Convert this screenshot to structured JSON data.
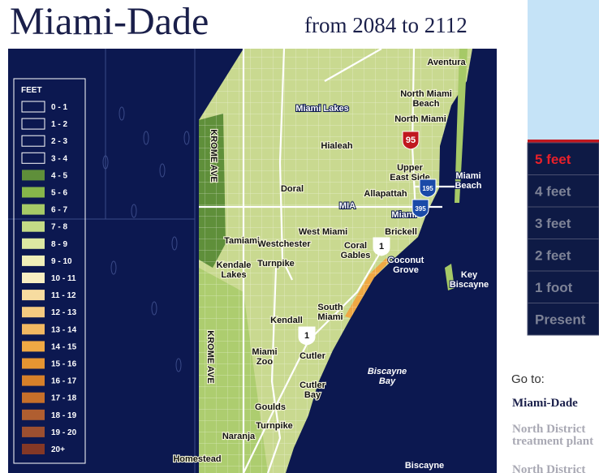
{
  "header": {
    "title": "Miami-Dade",
    "subtitle": "from 2084 to 2112"
  },
  "legend": {
    "title": "FEET",
    "items": [
      {
        "label": "0 - 1",
        "color": "#0c1850"
      },
      {
        "label": "1 - 2",
        "color": "#0c1850"
      },
      {
        "label": "2 - 3",
        "color": "#0c1850"
      },
      {
        "label": "3 - 4",
        "color": "#0c1850"
      },
      {
        "label": "4 - 5",
        "color": "#5f8f3a"
      },
      {
        "label": "5 - 6",
        "color": "#86b54a"
      },
      {
        "label": "6 - 7",
        "color": "#a6c967"
      },
      {
        "label": "7 - 8",
        "color": "#c4db86"
      },
      {
        "label": "8 - 9",
        "color": "#dce8a2"
      },
      {
        "label": "9 - 10",
        "color": "#f0efb8"
      },
      {
        "label": "10 - 11",
        "color": "#f8eec2"
      },
      {
        "label": "11 - 12",
        "color": "#f7dca0"
      },
      {
        "label": "12 - 13",
        "color": "#f4ca80"
      },
      {
        "label": "13 - 14",
        "color": "#f1b862"
      },
      {
        "label": "14 - 15",
        "color": "#efa844"
      },
      {
        "label": "15 - 16",
        "color": "#e59532"
      },
      {
        "label": "16 - 17",
        "color": "#d6802a"
      },
      {
        "label": "17 - 18",
        "color": "#c66f2a"
      },
      {
        "label": "18 - 19",
        "color": "#b05e30"
      },
      {
        "label": "19 - 20",
        "color": "#9c4f30"
      },
      {
        "label": "20+",
        "color": "#843826"
      }
    ]
  },
  "map": {
    "labels": [
      [
        "Aventura"
      ],
      [
        "North Miami",
        "Beach"
      ],
      [
        "Miami Lakes"
      ],
      [
        "North Miami"
      ],
      [
        "Hialeah"
      ],
      [
        "KROME AVE"
      ],
      [
        "Upper",
        "East Side"
      ],
      [
        "Miami",
        "Beach"
      ],
      [
        "Doral"
      ],
      [
        "Allapattah"
      ],
      [
        "MIA"
      ],
      [
        "Miami"
      ],
      [
        "West Miami"
      ],
      [
        "Brickell"
      ],
      [
        "Tamiami"
      ],
      [
        "Westchester"
      ],
      [
        "Coral",
        "Gables"
      ],
      [
        "Coconut",
        "Grove"
      ],
      [
        "Kendale",
        "Lakes"
      ],
      [
        "Turnpike"
      ],
      [
        "Key",
        "Biscayne"
      ],
      [
        "South",
        "Miami"
      ],
      [
        "Kendall"
      ],
      [
        "KROME AVE"
      ],
      [
        "Miami",
        "Zoo"
      ],
      [
        "Cutler"
      ],
      [
        "Biscayne",
        "Bay"
      ],
      [
        "Cutler",
        "Bay"
      ],
      [
        "Goulds"
      ],
      [
        "Turnpike"
      ],
      [
        "Naranja"
      ],
      [
        "Homestead"
      ],
      [
        "Biscayne"
      ]
    ],
    "shields": [
      "95",
      "195",
      "395",
      "1",
      "1"
    ]
  },
  "levels": {
    "items": [
      "5 feet",
      "4 feet",
      "3 feet",
      "2 feet",
      "1 foot",
      "Present"
    ],
    "selected_index": 0
  },
  "goto": {
    "title": "Go to:",
    "links": [
      [
        "Miami-Dade"
      ],
      [
        "North District",
        "treatment plant"
      ],
      [
        "North District"
      ]
    ]
  }
}
